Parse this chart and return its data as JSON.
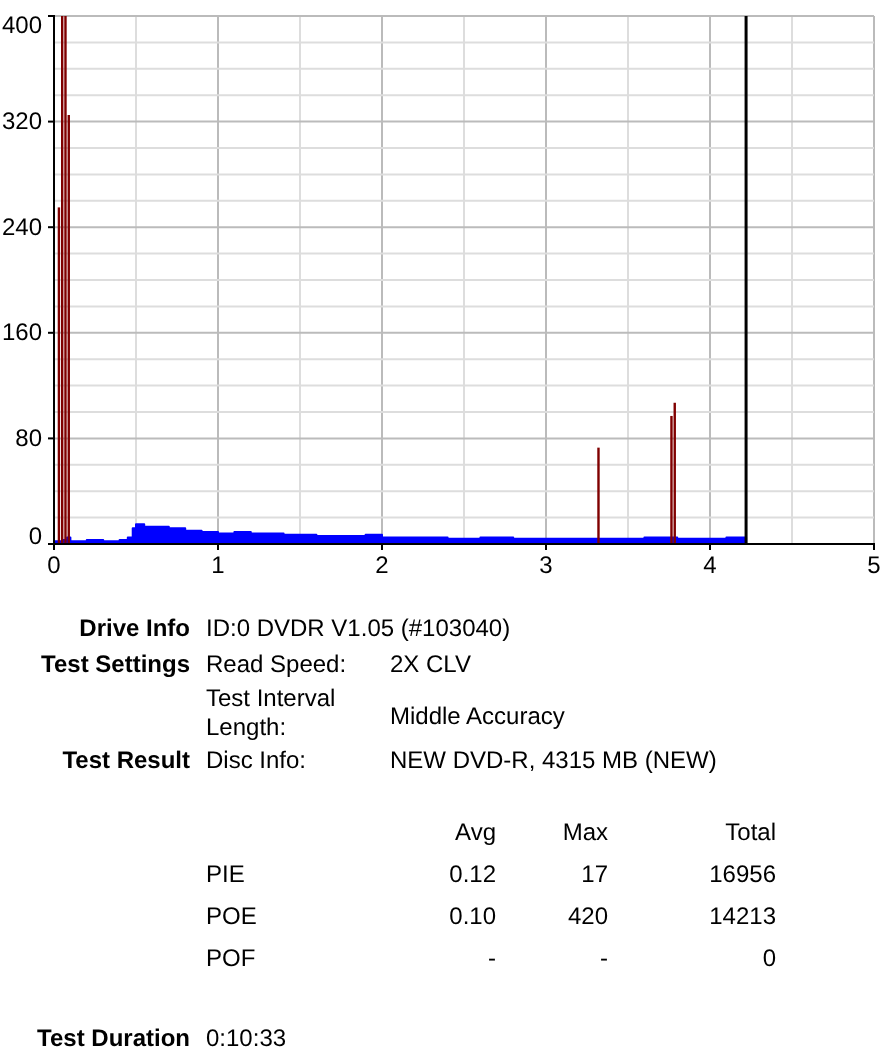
{
  "chart_data": {
    "type": "bar",
    "xlim": [
      0,
      5
    ],
    "xticks": [
      0,
      1,
      2,
      3,
      4,
      5
    ],
    "ylim": [
      0,
      400
    ],
    "yticks": [
      0,
      80,
      160,
      240,
      320,
      400
    ],
    "grid": true,
    "series": [
      {
        "type": "area",
        "color": "#0000ff",
        "x": [
          0,
          0.05,
          0.08,
          0.1,
          0.2,
          0.3,
          0.4,
          0.45,
          0.48,
          0.5,
          0.55,
          0.6,
          0.7,
          0.8,
          0.9,
          1.0,
          1.1,
          1.2,
          1.3,
          1.4,
          1.5,
          1.6,
          1.7,
          1.8,
          1.9,
          2.0,
          2.2,
          2.4,
          2.6,
          2.8,
          3.0,
          3.2,
          3.4,
          3.6,
          3.8,
          4.0,
          4.1,
          4.2,
          4.22
        ],
        "values": [
          2,
          3,
          5,
          2,
          3,
          2,
          3,
          5,
          12,
          15,
          13,
          13,
          12,
          10,
          9,
          8,
          9,
          8,
          8,
          7,
          7,
          6,
          6,
          6,
          7,
          5,
          5,
          4,
          5,
          4,
          4,
          4,
          4,
          5,
          4,
          4,
          5,
          5,
          0
        ]
      },
      {
        "color": "#800000",
        "x": [
          0.03,
          0.05,
          0.07,
          0.09,
          3.32,
          3.765,
          3.785
        ],
        "values": [
          255,
          400,
          400,
          325,
          73,
          97,
          107
        ]
      }
    ],
    "ref_lines": [
      {
        "axis": "x",
        "value": 4.22,
        "color": "#000000"
      }
    ],
    "annotations": [
      "Drive Info",
      "ID:0 DVDR V1.05 (#103040)",
      "Test Settings",
      "Read Speed:",
      "2X CLV",
      "Test Interval Length:",
      "Middle Accuracy",
      "Test Result",
      "Disc Info:",
      "NEW DVD-R, 4315 MB (NEW)",
      "Avg",
      "Max",
      "Total",
      "PIE",
      "0.12",
      "17",
      "16956",
      "POE",
      "0.10",
      "420",
      "14213",
      "POF",
      "-",
      "-",
      "0",
      "Test Duration",
      "0:10:33"
    ]
  }
}
